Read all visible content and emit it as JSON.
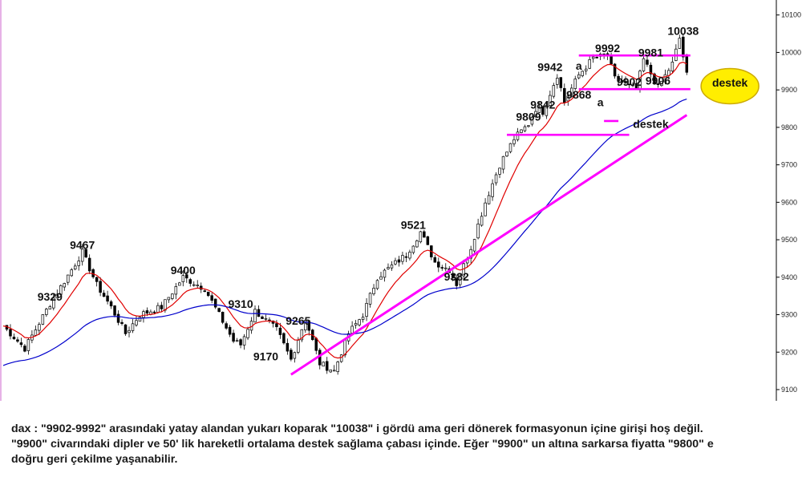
{
  "colors": {
    "bull": "#ffffff",
    "bear": "#000000",
    "candle_outline": "#000000",
    "ma_fast": "#e00000",
    "ma_slow": "#0000cc",
    "trend": "#ff00ff",
    "highlight_fill": "#ffee00",
    "highlight_stroke": "#ccaa00",
    "axis": "#000000"
  },
  "chart_data": {
    "type": "candlestick",
    "title": "",
    "xlabel": "",
    "ylabel": "",
    "ylim": [
      9070,
      10140
    ],
    "y_ticks": [
      9100,
      9200,
      9300,
      9400,
      9500,
      9600,
      9700,
      9800,
      9900,
      10000,
      10100
    ],
    "grid": false,
    "candle_count": 168,
    "anchors": [
      [
        0,
        9270
      ],
      [
        6,
        9210
      ],
      [
        13,
        9329
      ],
      [
        19,
        9420
      ],
      [
        22,
        9467
      ],
      [
        26,
        9380
      ],
      [
        30,
        9320
      ],
      [
        34,
        9250
      ],
      [
        38,
        9300
      ],
      [
        44,
        9320
      ],
      [
        50,
        9400
      ],
      [
        56,
        9370
      ],
      [
        60,
        9300
      ],
      [
        64,
        9230
      ],
      [
        66,
        9220
      ],
      [
        70,
        9310
      ],
      [
        76,
        9260
      ],
      [
        80,
        9180
      ],
      [
        84,
        9290
      ],
      [
        88,
        9170
      ],
      [
        92,
        9150
      ],
      [
        96,
        9250
      ],
      [
        100,
        9300
      ],
      [
        104,
        9400
      ],
      [
        108,
        9430
      ],
      [
        112,
        9460
      ],
      [
        116,
        9521
      ],
      [
        120,
        9440
      ],
      [
        124,
        9420
      ],
      [
        126,
        9382
      ],
      [
        130,
        9480
      ],
      [
        134,
        9600
      ],
      [
        138,
        9700
      ],
      [
        142,
        9770
      ],
      [
        146,
        9809
      ],
      [
        148,
        9850
      ],
      [
        150,
        9842
      ],
      [
        154,
        9940
      ],
      [
        156,
        9868
      ],
      [
        160,
        9940
      ],
      [
        164,
        9985
      ],
      [
        168,
        9992
      ],
      [
        170,
        9930
      ],
      [
        174,
        9910
      ],
      [
        176,
        9902
      ],
      [
        178,
        9981
      ],
      [
        182,
        9906
      ],
      [
        186,
        9970
      ],
      [
        188,
        10038
      ],
      [
        190,
        9940
      ]
    ],
    "annotations": [
      {
        "label": "9329",
        "x": 13,
        "value": 9329
      },
      {
        "label": "9467",
        "x": 22,
        "value": 9467
      },
      {
        "label": "9400",
        "x": 50,
        "value": 9400
      },
      {
        "label": "9310",
        "x": 66,
        "value": 9310
      },
      {
        "label": "9265",
        "x": 82,
        "value": 9265
      },
      {
        "label": "9170",
        "x": 73,
        "value": 9170
      },
      {
        "label": "9521",
        "x": 114,
        "value": 9521
      },
      {
        "label": "9382",
        "x": 126,
        "value": 9382
      },
      {
        "label": "9809",
        "x": 146,
        "value": 9809
      },
      {
        "label": "9842",
        "x": 150,
        "value": 9842
      },
      {
        "label": "9942",
        "x": 152,
        "value": 9942
      },
      {
        "label": "9868",
        "x": 160,
        "value": 9868
      },
      {
        "label": "9992",
        "x": 168,
        "value": 9992
      },
      {
        "label": "9981",
        "x": 180,
        "value": 9981
      },
      {
        "label": "9902",
        "x": 174,
        "value": 9902
      },
      {
        "label": "9906",
        "x": 182,
        "value": 9906
      },
      {
        "label": "10038",
        "x": 189,
        "value": 10038
      },
      {
        "label": "a",
        "x": 160,
        "value": 9945
      },
      {
        "label": "a",
        "x": 166,
        "value": 9848
      },
      {
        "label": "destek",
        "x": 180,
        "value": 9790
      },
      {
        "label": "destek",
        "x": 202,
        "value": 9900
      }
    ],
    "horizontal_levels": [
      {
        "value": 9992,
        "from_x": 160,
        "to_x": 191
      },
      {
        "value": 9902,
        "from_x": 160,
        "to_x": 191
      },
      {
        "value": 9780,
        "from_x": 140,
        "to_x": 174
      },
      {
        "value": 9817,
        "from_x": 167,
        "to_x": 171
      }
    ],
    "trend_line": {
      "from": [
        80,
        9140
      ],
      "to": [
        190,
        9833
      ]
    },
    "moving_averages": [
      {
        "period": 10,
        "color": "ma_fast"
      },
      {
        "period": 50,
        "color": "ma_slow"
      }
    ]
  },
  "caption": {
    "line1": "dax : \"9902-9992\" arasındaki yatay alandan yukarı koparak \"10038\" i gördü ama geri dönerek formasyonun içine girişi hoş değil.",
    "line2": "\"9900\" civarındaki dipler ve 50' lik hareketli ortalama destek sağlama çabası içinde. Eğer \"9900\" un altına sarkarsa fiyatta \"9800\" e",
    "line3": "doğru geri çekilme yaşanabilir."
  }
}
